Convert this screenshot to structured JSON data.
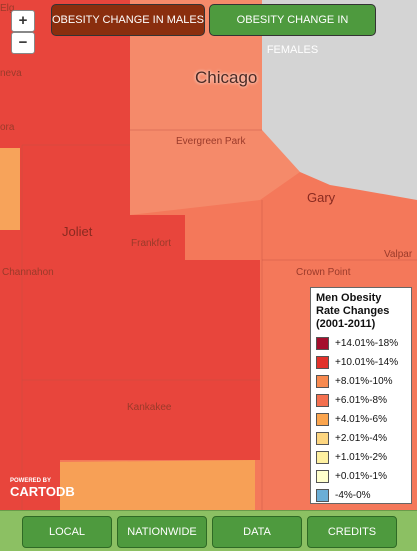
{
  "zoom": {
    "in": "+",
    "out": "−"
  },
  "toggles": [
    "OBESITY CHANGE IN MALES",
    "OBESITY CHANGE IN FEMALES"
  ],
  "map_labels": [
    "Elg",
    "neva",
    "ora",
    "Chicago",
    "Evergreen Park",
    "Gary",
    "Joliet",
    "Frankfort",
    "Channahon",
    "Crown Point",
    "Valpar",
    "Kankakee"
  ],
  "legend": {
    "title": "Men Obesity Rate Changes (2001-2011)",
    "items": [
      {
        "label": "+14.01%-18%",
        "color": "#a50f2d"
      },
      {
        "label": "+10.01%-14%",
        "color": "#e2322b"
      },
      {
        "label": "+8.01%-10%",
        "color": "#f88a4f"
      },
      {
        "label": "+6.01%-8%",
        "color": "#f4704f"
      },
      {
        "label": "+4.01%-6%",
        "color": "#fba54e"
      },
      {
        "label": "+2.01%-4%",
        "color": "#fdd680"
      },
      {
        "label": "+1.01%-2%",
        "color": "#fef0a0"
      },
      {
        "label": "+0.01%-1%",
        "color": "#ffffcc"
      },
      {
        "label": "-4%-0%",
        "color": "#6baed6"
      }
    ]
  },
  "attribution": {
    "line1": "POWERED BY",
    "line2": "CARTODB"
  },
  "nav": [
    "LOCAL",
    "NATIONWIDE",
    "DATA",
    "CREDITS"
  ]
}
